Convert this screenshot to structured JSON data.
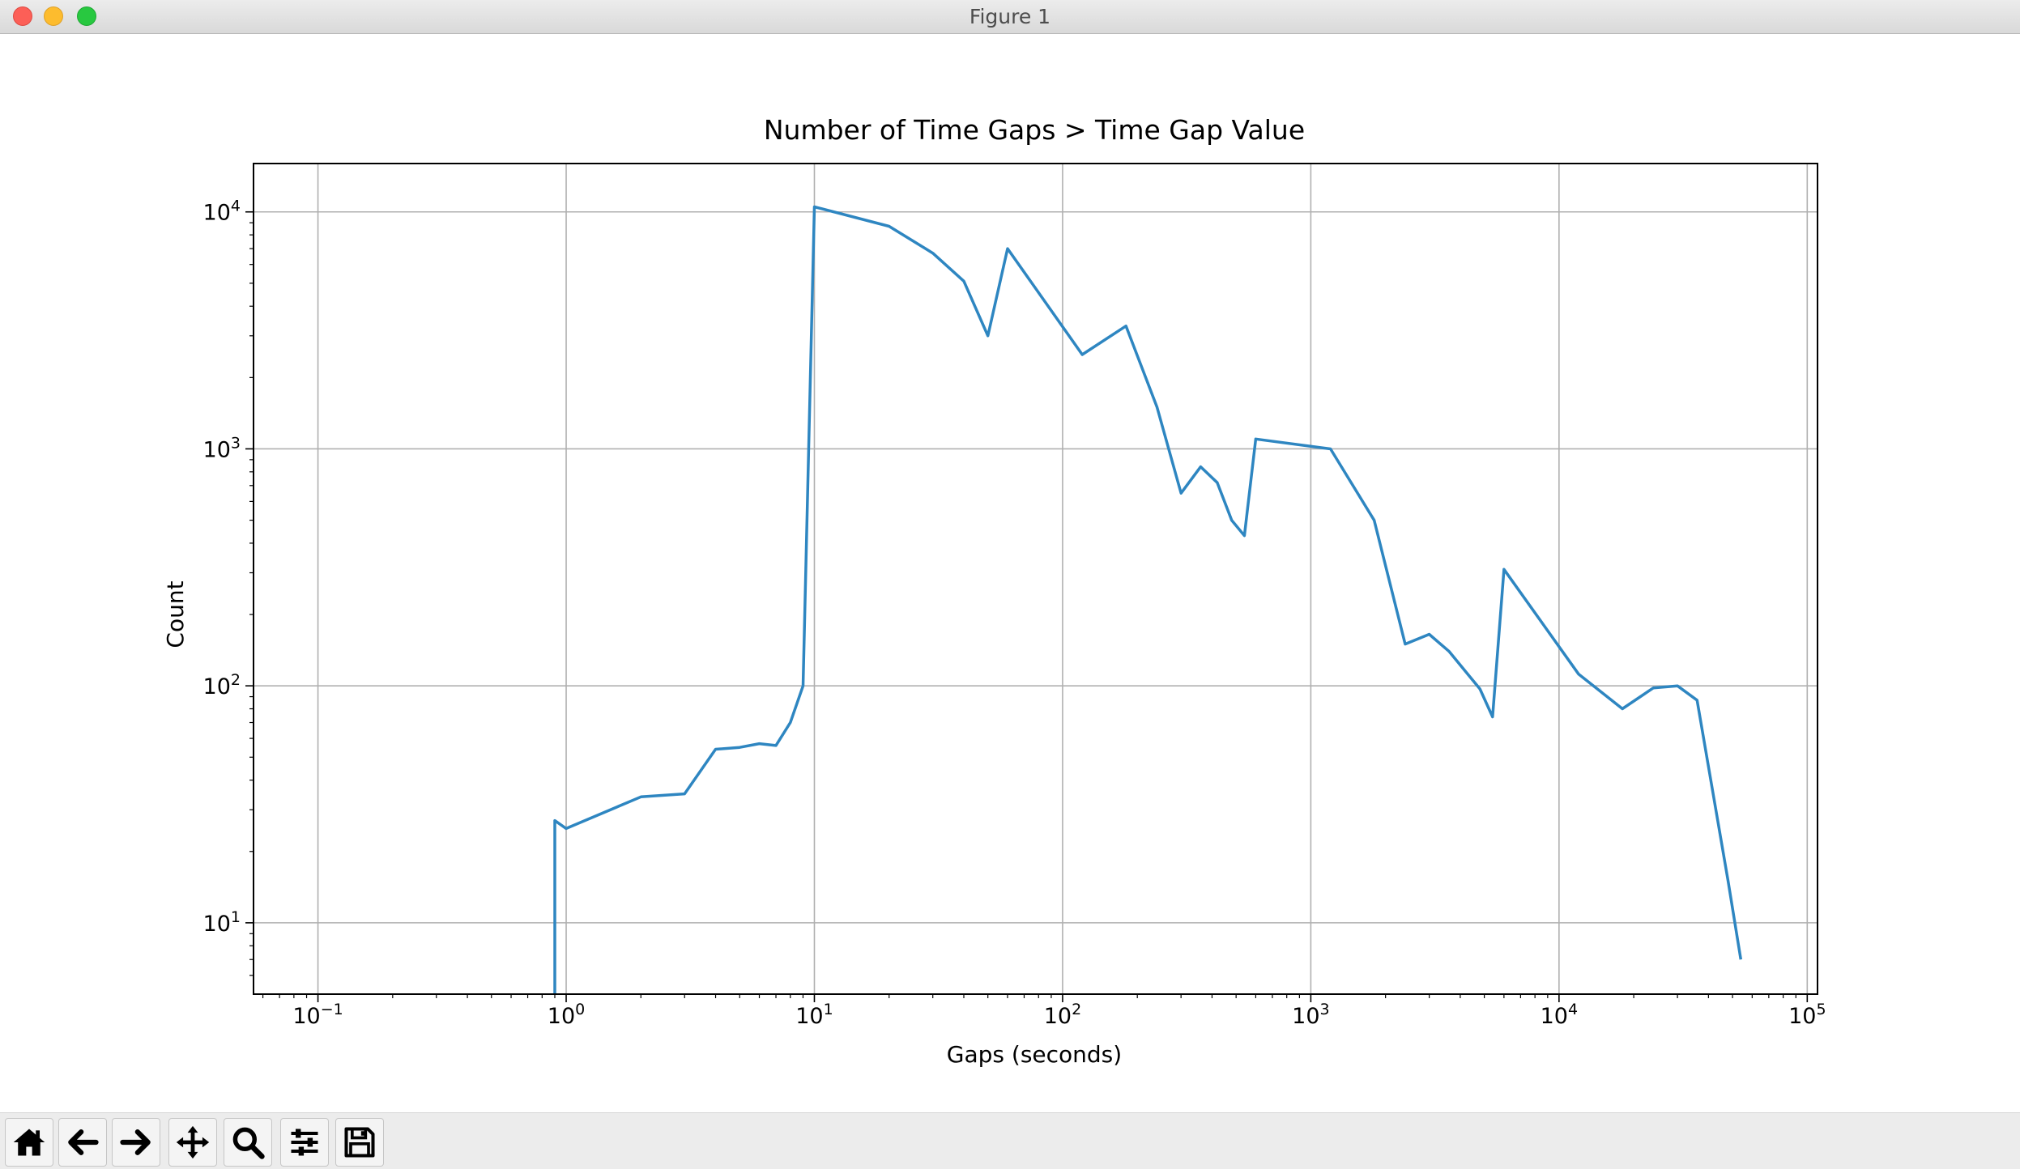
{
  "window": {
    "title": "Figure 1"
  },
  "toolbar": {
    "buttons": [
      {
        "name": "home",
        "icon": "home-icon"
      },
      {
        "name": "back",
        "icon": "arrow-left-icon"
      },
      {
        "name": "forward",
        "icon": "arrow-right-icon"
      },
      {
        "name": "pan",
        "icon": "move-icon"
      },
      {
        "name": "zoom",
        "icon": "magnifier-icon"
      },
      {
        "name": "configure-subplots",
        "icon": "sliders-icon"
      },
      {
        "name": "save",
        "icon": "floppy-disk-icon"
      }
    ]
  },
  "chart_data": {
    "type": "line",
    "title": "Number of Time Gaps > Time Gap Value",
    "xlabel": "Gaps (seconds)",
    "ylabel": "Count",
    "xscale": "log",
    "yscale": "log",
    "xlim": [
      0.055,
      110000
    ],
    "ylim": [
      5,
      16000
    ],
    "grid": true,
    "color": "#2e86c1",
    "xticks": [
      {
        "value": 0.1,
        "base": "10",
        "exp": "−1"
      },
      {
        "value": 1,
        "base": "10",
        "exp": "0"
      },
      {
        "value": 10,
        "base": "10",
        "exp": "1"
      },
      {
        "value": 100,
        "base": "10",
        "exp": "2"
      },
      {
        "value": 1000,
        "base": "10",
        "exp": "3"
      },
      {
        "value": 10000,
        "base": "10",
        "exp": "4"
      },
      {
        "value": 100000,
        "base": "10",
        "exp": "5"
      }
    ],
    "yticks": [
      {
        "value": 10,
        "base": "10",
        "exp": "1"
      },
      {
        "value": 100,
        "base": "10",
        "exp": "2"
      },
      {
        "value": 1000,
        "base": "10",
        "exp": "3"
      },
      {
        "value": 10000,
        "base": "10",
        "exp": "4"
      }
    ],
    "x": [
      0.9,
      0.9,
      1,
      2,
      3,
      4,
      5,
      6,
      7,
      8,
      9,
      10,
      20,
      30,
      40,
      50,
      60,
      120,
      180,
      240,
      300,
      360,
      420,
      480,
      540,
      600,
      1200,
      1800,
      2400,
      3000,
      3600,
      4200,
      4800,
      5400,
      6000,
      12000,
      18000,
      24000,
      30000,
      36000,
      48000,
      54000
    ],
    "y": [
      4,
      27,
      25,
      34,
      35,
      54,
      55,
      57,
      56,
      70,
      100,
      10500,
      8700,
      6700,
      5100,
      3000,
      7000,
      2500,
      3300,
      1500,
      650,
      840,
      720,
      500,
      430,
      1100,
      1000,
      500,
      150,
      165,
      140,
      115,
      97,
      74,
      310,
      112,
      80,
      98,
      100,
      87,
      15,
      7
    ]
  }
}
